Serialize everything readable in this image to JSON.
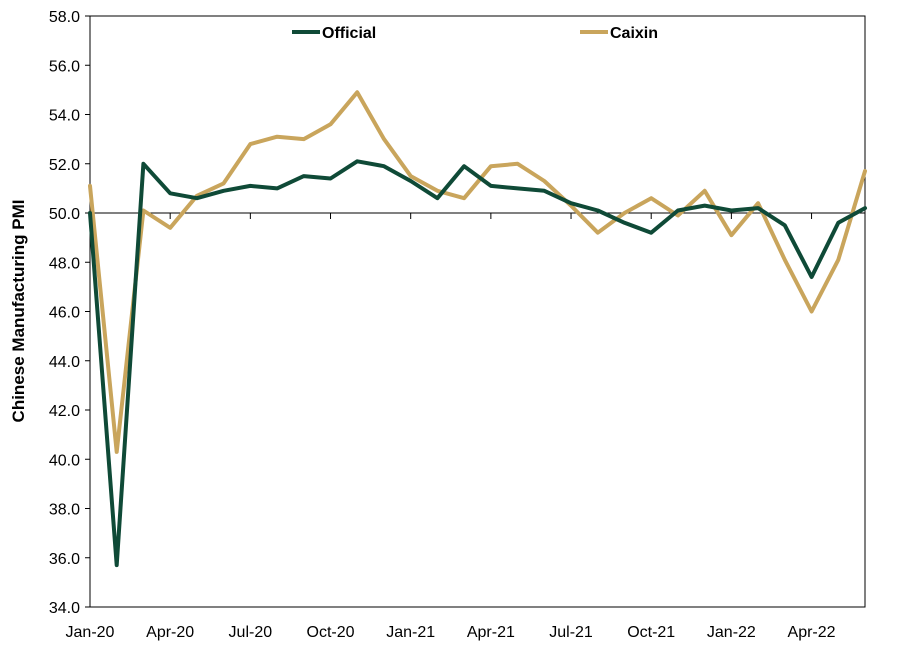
{
  "chart_data": {
    "type": "line",
    "title": "",
    "xlabel": "",
    "ylabel": "Chinese Manufacturing PMI",
    "ylim": [
      34.0,
      58.0
    ],
    "y_ticks": [
      "34.0",
      "36.0",
      "38.0",
      "40.0",
      "42.0",
      "44.0",
      "46.0",
      "48.0",
      "50.0",
      "52.0",
      "54.0",
      "56.0",
      "58.0"
    ],
    "x_tick_labels": [
      "Jan-20",
      "Apr-20",
      "Jul-20",
      "Oct-20",
      "Jan-21",
      "Apr-21",
      "Jul-21",
      "Oct-21",
      "Jan-22",
      "Apr-22"
    ],
    "reference_line": 50.0,
    "grid": false,
    "legend_position": "top",
    "categories": [
      "Jan-20",
      "Feb-20",
      "Mar-20",
      "Apr-20",
      "May-20",
      "Jun-20",
      "Jul-20",
      "Aug-20",
      "Sep-20",
      "Oct-20",
      "Nov-20",
      "Dec-20",
      "Jan-21",
      "Feb-21",
      "Mar-21",
      "Apr-21",
      "May-21",
      "Jun-21",
      "Jul-21",
      "Aug-21",
      "Sep-21",
      "Oct-21",
      "Nov-21",
      "Dec-21",
      "Jan-22",
      "Feb-22",
      "Mar-22",
      "Apr-22",
      "May-22",
      "Jun-22"
    ],
    "series": [
      {
        "name": "Official",
        "color": "#0f4a37",
        "values": [
          50.0,
          35.7,
          52.0,
          50.8,
          50.6,
          50.9,
          51.1,
          51.0,
          51.5,
          51.4,
          52.1,
          51.9,
          51.3,
          50.6,
          51.9,
          51.1,
          51.0,
          50.9,
          50.4,
          50.1,
          49.6,
          49.2,
          50.1,
          50.3,
          50.1,
          50.2,
          49.5,
          47.4,
          49.6,
          50.2
        ]
      },
      {
        "name": "Caixin",
        "color": "#c9a55c",
        "values": [
          51.1,
          40.3,
          50.1,
          49.4,
          50.7,
          51.2,
          52.8,
          53.1,
          53.0,
          53.6,
          54.9,
          53.0,
          51.5,
          50.9,
          50.6,
          51.9,
          52.0,
          51.3,
          50.3,
          49.2,
          50.0,
          50.6,
          49.9,
          50.9,
          49.1,
          50.4,
          48.1,
          46.0,
          48.1,
          51.7
        ]
      }
    ]
  }
}
